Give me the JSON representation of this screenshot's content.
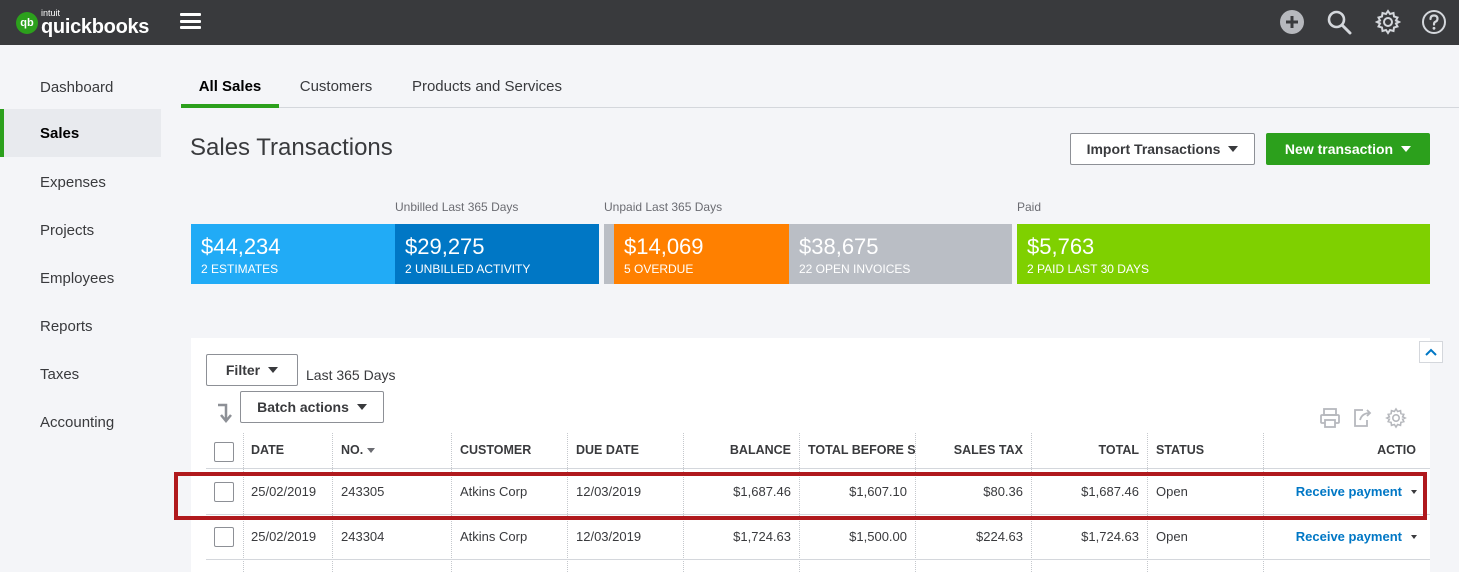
{
  "app": {
    "logo_badge": "qb",
    "logo_brand": "intuit",
    "logo_name": "quickbooks"
  },
  "topbar_icons": [
    "plus-icon",
    "search-icon",
    "gear-icon",
    "help-icon"
  ],
  "sidebar": {
    "items": [
      {
        "label": "Dashboard",
        "active": false
      },
      {
        "label": "Sales",
        "active": true
      },
      {
        "label": "Expenses",
        "active": false
      },
      {
        "label": "Projects",
        "active": false
      },
      {
        "label": "Employees",
        "active": false
      },
      {
        "label": "Reports",
        "active": false
      },
      {
        "label": "Taxes",
        "active": false
      },
      {
        "label": "Accounting",
        "active": false
      }
    ]
  },
  "tabs": [
    {
      "label": "All Sales",
      "active": true
    },
    {
      "label": "Customers",
      "active": false
    },
    {
      "label": "Products and Services",
      "active": false
    }
  ],
  "header": {
    "title": "Sales Transactions",
    "import_label": "Import Transactions",
    "new_label": "New transaction"
  },
  "money_bar": {
    "labels": {
      "unbilled": "Unbilled Last 365 Days",
      "unpaid": "Unpaid Last 365 Days",
      "paid": "Paid"
    },
    "blocks": [
      {
        "amount": "$44,234",
        "sub": "2 ESTIMATES",
        "color": "#21abf6"
      },
      {
        "amount": "$29,275",
        "sub": "2 UNBILLED ACTIVITY",
        "color": "#0077c5"
      },
      {
        "amount": "$14,069",
        "sub": "5 OVERDUE",
        "color": "#ff8000"
      },
      {
        "amount": "$38,675",
        "sub": "22 OPEN INVOICES",
        "color": "#babec5"
      },
      {
        "amount": "$5,763",
        "sub": "2 PAID LAST 30 DAYS",
        "color": "#7fd000"
      }
    ]
  },
  "filters": {
    "filter_label": "Filter",
    "range": "Last 365 Days",
    "batch_label": "Batch actions"
  },
  "table": {
    "columns": [
      "DATE",
      "NO.",
      "CUSTOMER",
      "DUE DATE",
      "BALANCE",
      "TOTAL BEFORE SA",
      "SALES TAX",
      "TOTAL",
      "STATUS",
      "ACTIO"
    ],
    "rows": [
      {
        "date": "25/02/2019",
        "no": "243305",
        "customer": "Atkins Corp",
        "due": "12/03/2019",
        "balance": "$1,687.46",
        "before": "$1,607.10",
        "tax": "$80.36",
        "total": "$1,687.46",
        "status": "Open",
        "action": "Receive payment"
      },
      {
        "date": "25/02/2019",
        "no": "243304",
        "customer": "Atkins Corp",
        "due": "12/03/2019",
        "balance": "$1,724.63",
        "before": "$1,500.00",
        "tax": "$224.63",
        "total": "$1,724.63",
        "status": "Open",
        "action": "Receive payment"
      }
    ]
  },
  "colors": {
    "accent_green": "#2ca01c",
    "link_blue": "#0077c5",
    "highlight_red": "#b0191d",
    "topbar": "#393a3d"
  }
}
